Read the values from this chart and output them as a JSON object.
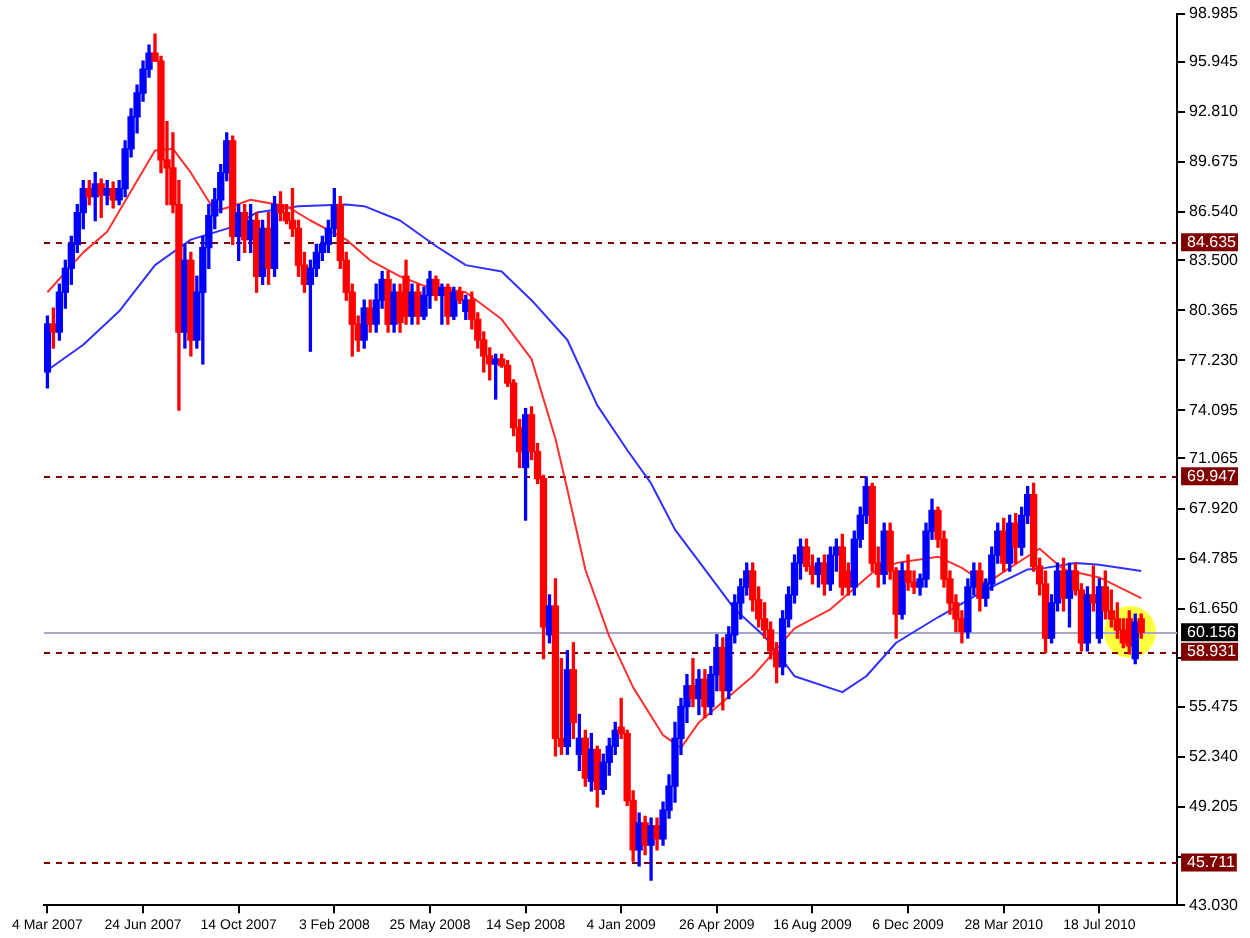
{
  "chart_data": {
    "type": "candlestick",
    "x": [
      "2007-03-04",
      "2007-03-11",
      "2007-03-18",
      "2007-03-25",
      "2007-04-01",
      "2007-04-08",
      "2007-04-15",
      "2007-04-22",
      "2007-04-29",
      "2007-05-06",
      "2007-05-13",
      "2007-05-20",
      "2007-05-27",
      "2007-06-03",
      "2007-06-10",
      "2007-06-17",
      "2007-06-24",
      "2007-07-01",
      "2007-07-08",
      "2007-07-15",
      "2007-07-22",
      "2007-07-29",
      "2007-08-05",
      "2007-08-12",
      "2007-08-19",
      "2007-08-26",
      "2007-09-02",
      "2007-09-09",
      "2007-09-16",
      "2007-09-23",
      "2007-09-30",
      "2007-10-07",
      "2007-10-14",
      "2007-10-21",
      "2007-10-28",
      "2007-11-04",
      "2007-11-11",
      "2007-11-18",
      "2007-11-25",
      "2007-12-02",
      "2007-12-09",
      "2007-12-16",
      "2007-12-23",
      "2007-12-30",
      "2008-01-06",
      "2008-01-13",
      "2008-01-20",
      "2008-01-27",
      "2008-02-03",
      "2008-02-10",
      "2008-02-17",
      "2008-02-24",
      "2008-03-02",
      "2008-03-09",
      "2008-03-16",
      "2008-03-23",
      "2008-03-30",
      "2008-04-06",
      "2008-04-13",
      "2008-04-20",
      "2008-04-27",
      "2008-05-04",
      "2008-05-11",
      "2008-05-18",
      "2008-05-25",
      "2008-06-01",
      "2008-06-08",
      "2008-06-15",
      "2008-06-22",
      "2008-06-29",
      "2008-07-06",
      "2008-07-13",
      "2008-07-20",
      "2008-07-27",
      "2008-08-03",
      "2008-08-10",
      "2008-08-17",
      "2008-08-24",
      "2008-08-31",
      "2008-09-07",
      "2008-09-14",
      "2008-09-21",
      "2008-09-28",
      "2008-10-05",
      "2008-10-12",
      "2008-10-19",
      "2008-10-26",
      "2008-11-02",
      "2008-11-09",
      "2008-11-16",
      "2008-11-23",
      "2008-11-30",
      "2008-12-07",
      "2008-12-14",
      "2008-12-21",
      "2008-12-28",
      "2009-01-04",
      "2009-01-11",
      "2009-01-18",
      "2009-01-25",
      "2009-02-01",
      "2009-02-08",
      "2009-02-15",
      "2009-02-22",
      "2009-03-01",
      "2009-03-08",
      "2009-03-15",
      "2009-03-22",
      "2009-03-29",
      "2009-04-05",
      "2009-04-12",
      "2009-04-19",
      "2009-04-26",
      "2009-05-03",
      "2009-05-10",
      "2009-05-17",
      "2009-05-24",
      "2009-05-31",
      "2009-06-07",
      "2009-06-14",
      "2009-06-21",
      "2009-06-28",
      "2009-07-05",
      "2009-07-12",
      "2009-07-19",
      "2009-07-26",
      "2009-08-02",
      "2009-08-09",
      "2009-08-16",
      "2009-08-23",
      "2009-08-30",
      "2009-09-06",
      "2009-09-13",
      "2009-09-20",
      "2009-09-27",
      "2009-10-04",
      "2009-10-11",
      "2009-10-18",
      "2009-10-25",
      "2009-11-01",
      "2009-11-08",
      "2009-11-15",
      "2009-11-22",
      "2009-11-29",
      "2009-12-06",
      "2009-12-13",
      "2009-12-20",
      "2009-12-27",
      "2010-01-03",
      "2010-01-10",
      "2010-01-17",
      "2010-01-24",
      "2010-01-31",
      "2010-02-07",
      "2010-02-14",
      "2010-02-21",
      "2010-02-28",
      "2010-03-07",
      "2010-03-14",
      "2010-03-21",
      "2010-03-28",
      "2010-04-04",
      "2010-04-11",
      "2010-04-18",
      "2010-04-25",
      "2010-05-02",
      "2010-05-09",
      "2010-05-16",
      "2010-05-23",
      "2010-05-30",
      "2010-06-06",
      "2010-06-13",
      "2010-06-20",
      "2010-06-27",
      "2010-07-04",
      "2010-07-11",
      "2010-07-18",
      "2010-07-25",
      "2010-08-01",
      "2010-08-08",
      "2010-08-15",
      "2010-08-22",
      "2010-08-29",
      "2010-09-05"
    ],
    "ohlc": [
      [
        76.5,
        80,
        75.5,
        79.5
      ],
      [
        79.5,
        80.5,
        78,
        79
      ],
      [
        79,
        82,
        78.5,
        81.5
      ],
      [
        81.5,
        83.5,
        80.5,
        83
      ],
      [
        83,
        85,
        82,
        84.5
      ],
      [
        84.5,
        87,
        84,
        86.5
      ],
      [
        86.5,
        88.5,
        85.5,
        88
      ],
      [
        88,
        88.5,
        87,
        87.5
      ],
      [
        87.5,
        89,
        86,
        88.3
      ],
      [
        88.3,
        88.6,
        86.2,
        87.6
      ],
      [
        87.6,
        88.5,
        87,
        88
      ],
      [
        88,
        88.4,
        86.8,
        87.3
      ],
      [
        87.3,
        88.5,
        87,
        88
      ],
      [
        88,
        91,
        87.5,
        90.5
      ],
      [
        90.5,
        93,
        90,
        92.5
      ],
      [
        92.5,
        94.5,
        91.5,
        94
      ],
      [
        94,
        96,
        93.5,
        95.5
      ],
      [
        95.5,
        97,
        95,
        96.5
      ],
      [
        96.5,
        97.7,
        96,
        96
      ],
      [
        96,
        96.3,
        89,
        89.8
      ],
      [
        89.8,
        92.2,
        87,
        89.3
      ],
      [
        89.3,
        91.5,
        86.5,
        87
      ],
      [
        87,
        88.5,
        74.1,
        79
      ],
      [
        79,
        84.5,
        78,
        83.5
      ],
      [
        83.5,
        84,
        77.5,
        78.5
      ],
      [
        78.5,
        82.5,
        78,
        81.5
      ],
      [
        81.5,
        85,
        77,
        84.3
      ],
      [
        84.3,
        87,
        83,
        86.3
      ],
      [
        86.3,
        88,
        85.5,
        87.3
      ],
      [
        87.3,
        89.5,
        86.5,
        89
      ],
      [
        89,
        91.5,
        88.5,
        91
      ],
      [
        91,
        91.3,
        84.5,
        85
      ],
      [
        85,
        87,
        83.5,
        86.5
      ],
      [
        86.5,
        87,
        84,
        84.8
      ],
      [
        84.8,
        87,
        84,
        86
      ],
      [
        86,
        86.5,
        81.5,
        82.5
      ],
      [
        82.5,
        86,
        82,
        85.5
      ],
      [
        85.5,
        86.5,
        82,
        83
      ],
      [
        83,
        87.5,
        82.5,
        87
      ],
      [
        87,
        87.8,
        86,
        86.5
      ],
      [
        86.5,
        87,
        85.8,
        86
      ],
      [
        86,
        88,
        85,
        85.5
      ],
      [
        85.5,
        86,
        82.5,
        83.2
      ],
      [
        83.2,
        84,
        81.5,
        82
      ],
      [
        82,
        83.5,
        77.8,
        83
      ],
      [
        83,
        84.5,
        82.5,
        84
      ],
      [
        84,
        85,
        83.5,
        84.5
      ],
      [
        84.5,
        86,
        84,
        85.5
      ],
      [
        85.5,
        88,
        85,
        87
      ],
      [
        87,
        87.5,
        83,
        83.5
      ],
      [
        83.5,
        84,
        81,
        81.5
      ],
      [
        81.5,
        82,
        77.5,
        79.5
      ],
      [
        79.5,
        80,
        77.8,
        78.5
      ],
      [
        78.5,
        81,
        78,
        80.5
      ],
      [
        80.5,
        81,
        79,
        79.5
      ],
      [
        79.5,
        82,
        79,
        81
      ],
      [
        81,
        82.8,
        80.5,
        82.3
      ],
      [
        82.3,
        82.8,
        79,
        79.5
      ],
      [
        79.5,
        82,
        79,
        81.5
      ],
      [
        81.5,
        82,
        79,
        79.6
      ],
      [
        82.5,
        83.5,
        79.5,
        80
      ],
      [
        80,
        82,
        79.5,
        81.5
      ],
      [
        81.5,
        82,
        79.5,
        80
      ],
      [
        80,
        81.8,
        79.8,
        81.3
      ],
      [
        81.3,
        82.8,
        80.5,
        82.3
      ],
      [
        82.3,
        82.5,
        81,
        81.3
      ],
      [
        81.3,
        82,
        79.5,
        81.8
      ],
      [
        81.8,
        82,
        79.5,
        80
      ],
      [
        80,
        81.8,
        79.8,
        81.5
      ],
      [
        81.5,
        81.8,
        80.8,
        81
      ],
      [
        80.3,
        81.3,
        79.8,
        81
      ],
      [
        81,
        81.5,
        79.2,
        79.8
      ],
      [
        79.8,
        80.2,
        78,
        78.5
      ],
      [
        78.5,
        79,
        76.5,
        77.5
      ],
      [
        77.5,
        78,
        76,
        77
      ],
      [
        77,
        77.6,
        74.8,
        77.3
      ],
      [
        77.3,
        77.6,
        76.8,
        76.9
      ],
      [
        76.9,
        77.2,
        75.6,
        75.8
      ],
      [
        75.8,
        76,
        72.5,
        73
      ],
      [
        73,
        73.5,
        70.5,
        71.5
      ],
      [
        70.5,
        74.2,
        67.2,
        73.8
      ],
      [
        73.8,
        74.3,
        71,
        71.5
      ],
      [
        71.5,
        72,
        69.5,
        69.8
      ],
      [
        69.8,
        70,
        58.5,
        60.5
      ],
      [
        60,
        62.5,
        59.5,
        61.8
      ],
      [
        61.8,
        63.5,
        52.4,
        53.5
      ],
      [
        53.5,
        58.5,
        52.5,
        53
      ],
      [
        53,
        59,
        52.5,
        57.8
      ],
      [
        57.8,
        59.5,
        53.5,
        54.5
      ],
      [
        52.5,
        55,
        51.5,
        53.5
      ],
      [
        53.5,
        54,
        50.5,
        51
      ],
      [
        50.8,
        53.8,
        50.2,
        52.8
      ],
      [
        52.8,
        53,
        49.2,
        50.3
      ],
      [
        50.3,
        52.5,
        50,
        52
      ],
      [
        52,
        53.5,
        51.2,
        53
      ],
      [
        53,
        54.5,
        52.5,
        54
      ],
      [
        54.2,
        56,
        53.5,
        53.8
      ],
      [
        53.8,
        54,
        49.3,
        49.6
      ],
      [
        49.6,
        50.2,
        45.8,
        46.5
      ],
      [
        46.5,
        48.8,
        45.5,
        48.2
      ],
      [
        48.2,
        48.6,
        46.2,
        46.8
      ],
      [
        46.8,
        48.5,
        44.6,
        48
      ],
      [
        48,
        48.5,
        46.5,
        47.2
      ],
      [
        47.2,
        49.5,
        46.8,
        49
      ],
      [
        49,
        51.2,
        48.5,
        50.5
      ],
      [
        50.5,
        54.5,
        49.5,
        53.5
      ],
      [
        53.5,
        56,
        52.5,
        55.5
      ],
      [
        55.5,
        57.5,
        54.5,
        56.8
      ],
      [
        56.8,
        58.5,
        55.5,
        56
      ],
      [
        56,
        57.8,
        55,
        57.2
      ],
      [
        57.2,
        57.8,
        54.8,
        55.5
      ],
      [
        55.5,
        58,
        55,
        57.5
      ],
      [
        57.5,
        60,
        56.5,
        59.2
      ],
      [
        59.2,
        59.8,
        55.3,
        56.5
      ],
      [
        56.5,
        60.5,
        56,
        60
      ],
      [
        60,
        62.5,
        59.5,
        62
      ],
      [
        62,
        63.5,
        61,
        63
      ],
      [
        63,
        64.5,
        62.5,
        64
      ],
      [
        64,
        64.5,
        61.5,
        62.2
      ],
      [
        62.2,
        63,
        60.5,
        61
      ],
      [
        61,
        62,
        59.8,
        60.3
      ],
      [
        60.3,
        60.8,
        58.5,
        59
      ],
      [
        59,
        59.5,
        57,
        58
      ],
      [
        58,
        61.5,
        57.5,
        61
      ],
      [
        61,
        63,
        60.5,
        62.5
      ],
      [
        62.5,
        65,
        62,
        64.5
      ],
      [
        64.5,
        66,
        63.5,
        65.5
      ],
      [
        65.5,
        66,
        64,
        64.3
      ],
      [
        64.3,
        65,
        63.2,
        63.8
      ],
      [
        63.8,
        64.8,
        63,
        64.5
      ],
      [
        64.5,
        65,
        62.5,
        63.2
      ],
      [
        63.2,
        65.5,
        62.8,
        65
      ],
      [
        65,
        66,
        64,
        65.5
      ],
      [
        65.5,
        66.3,
        62.5,
        63
      ],
      [
        64,
        64.5,
        62.5,
        63
      ],
      [
        63,
        66.5,
        62.5,
        66
      ],
      [
        66,
        68,
        65.5,
        67.5
      ],
      [
        67.5,
        69.9,
        67,
        69.3
      ],
      [
        69.3,
        69.5,
        64,
        64.5
      ],
      [
        64.5,
        65.5,
        63,
        63.8
      ],
      [
        63.8,
        67,
        63.2,
        66.5
      ],
      [
        66.5,
        67,
        63.5,
        64
      ],
      [
        64,
        64.2,
        59.8,
        61.3
      ],
      [
        61.3,
        64.5,
        61,
        64
      ],
      [
        64,
        65,
        62.8,
        63.3
      ],
      [
        63.3,
        64,
        62.6,
        63
      ],
      [
        63,
        63.8,
        62.5,
        63.5
      ],
      [
        63.5,
        67,
        63,
        66.5
      ],
      [
        66.5,
        68.5,
        66,
        67.8
      ],
      [
        67.8,
        68,
        65.5,
        66
      ],
      [
        66,
        66.5,
        63,
        63.5
      ],
      [
        63.5,
        64,
        61.3,
        62
      ],
      [
        62,
        62.5,
        60.2,
        61
      ],
      [
        61,
        61.5,
        59.5,
        60.2
      ],
      [
        60.2,
        63.5,
        59.8,
        63
      ],
      [
        63,
        64.5,
        62.5,
        64
      ],
      [
        64,
        64.5,
        61.5,
        62.3
      ],
      [
        62.3,
        63.5,
        61.8,
        63.2
      ],
      [
        63.2,
        65.5,
        62.8,
        65
      ],
      [
        65,
        67,
        64.5,
        66.5
      ],
      [
        66.5,
        67.3,
        64,
        64.5
      ],
      [
        64.5,
        67.5,
        64,
        67
      ],
      [
        67,
        67.6,
        64.5,
        65.5
      ],
      [
        65.5,
        68,
        65,
        67.5
      ],
      [
        67.5,
        69.3,
        67,
        68.8
      ],
      [
        68.8,
        69.5,
        64,
        64.3
      ],
      [
        64.3,
        64.8,
        62.5,
        63.2
      ],
      [
        63.2,
        64,
        58.9,
        59.8
      ],
      [
        59.8,
        62.5,
        59.5,
        62
      ],
      [
        62,
        64.5,
        61.5,
        64
      ],
      [
        64,
        64.8,
        61.5,
        62.3
      ],
      [
        62.3,
        64.5,
        60.5,
        64
      ],
      [
        64,
        64.5,
        62.5,
        62.8
      ],
      [
        62.8,
        63.2,
        59,
        59.5
      ],
      [
        59.5,
        63,
        59,
        62.5
      ],
      [
        62.5,
        64.3,
        61.5,
        62
      ],
      [
        59.8,
        63.5,
        59.5,
        63
      ],
      [
        63,
        64,
        61,
        61.5
      ],
      [
        61.5,
        62.8,
        60.5,
        61
      ],
      [
        61,
        62,
        59.8,
        60.3
      ],
      [
        60.3,
        61,
        59.2,
        59.5
      ],
      [
        61,
        61.5,
        58.8,
        59.3
      ],
      [
        58.5,
        61.3,
        58.2,
        60.8
      ],
      [
        61,
        61.3,
        59.8,
        60.156
      ]
    ],
    "colors": [
      "#0000ff",
      "#ff0000",
      "#0000ff",
      "#0000ff",
      "#0000ff",
      "#0000ff",
      "#0000ff",
      "#ff0000",
      "#0000ff",
      "#ff0000",
      "#0000ff",
      "#ff0000",
      "#0000ff",
      "#0000ff",
      "#0000ff",
      "#0000ff",
      "#0000ff",
      "#0000ff",
      "#ff0000",
      "#ff0000",
      "#ff0000",
      "#ff0000",
      "#ff0000",
      "#0000ff",
      "#ff0000",
      "#0000ff",
      "#0000ff",
      "#0000ff",
      "#0000ff",
      "#0000ff",
      "#0000ff",
      "#ff0000",
      "#0000ff",
      "#ff0000",
      "#0000ff",
      "#ff0000",
      "#0000ff",
      "#ff0000",
      "#0000ff",
      "#ff0000",
      "#ff0000",
      "#ff0000",
      "#ff0000",
      "#ff0000",
      "#0000ff",
      "#0000ff",
      "#0000ff",
      "#0000ff",
      "#0000ff",
      "#ff0000",
      "#ff0000",
      "#ff0000",
      "#ff0000",
      "#0000ff",
      "#ff0000",
      "#0000ff",
      "#0000ff",
      "#ff0000",
      "#0000ff",
      "#ff0000",
      "#ff0000",
      "#0000ff",
      "#ff0000",
      "#0000ff",
      "#0000ff",
      "#ff0000",
      "#0000ff",
      "#ff0000",
      "#0000ff",
      "#ff0000",
      "#0000ff",
      "#ff0000",
      "#ff0000",
      "#ff0000",
      "#ff0000",
      "#0000ff",
      "#ff0000",
      "#ff0000",
      "#ff0000",
      "#ff0000",
      "#0000ff",
      "#ff0000",
      "#ff0000",
      "#ff0000",
      "#0000ff",
      "#ff0000",
      "#ff0000",
      "#0000ff",
      "#ff0000",
      "#0000ff",
      "#ff0000",
      "#0000ff",
      "#ff0000",
      "#0000ff",
      "#0000ff",
      "#0000ff",
      "#ff0000",
      "#ff0000",
      "#ff0000",
      "#0000ff",
      "#ff0000",
      "#0000ff",
      "#ff0000",
      "#0000ff",
      "#0000ff",
      "#0000ff",
      "#0000ff",
      "#0000ff",
      "#ff0000",
      "#0000ff",
      "#ff0000",
      "#0000ff",
      "#0000ff",
      "#ff0000",
      "#0000ff",
      "#0000ff",
      "#0000ff",
      "#0000ff",
      "#ff0000",
      "#ff0000",
      "#ff0000",
      "#ff0000",
      "#ff0000",
      "#0000ff",
      "#0000ff",
      "#0000ff",
      "#0000ff",
      "#ff0000",
      "#ff0000",
      "#0000ff",
      "#ff0000",
      "#0000ff",
      "#0000ff",
      "#ff0000",
      "#ff0000",
      "#0000ff",
      "#0000ff",
      "#0000ff",
      "#ff0000",
      "#ff0000",
      "#0000ff",
      "#ff0000",
      "#ff0000",
      "#0000ff",
      "#ff0000",
      "#ff0000",
      "#0000ff",
      "#0000ff",
      "#0000ff",
      "#ff0000",
      "#ff0000",
      "#ff0000",
      "#ff0000",
      "#ff0000",
      "#0000ff",
      "#0000ff",
      "#ff0000",
      "#0000ff",
      "#0000ff",
      "#0000ff",
      "#ff0000",
      "#0000ff",
      "#ff0000",
      "#0000ff",
      "#0000ff",
      "#ff0000",
      "#ff0000",
      "#ff0000",
      "#0000ff",
      "#0000ff",
      "#ff0000",
      "#0000ff",
      "#ff0000",
      "#ff0000",
      "#0000ff",
      "#ff0000",
      "#0000ff",
      "#ff0000",
      "#ff0000",
      "#ff0000",
      "#ff0000",
      "#ff0000",
      "#0000ff",
      "#ff0000"
    ],
    "series": [
      {
        "type": "line",
        "color": "#ff3030",
        "x": [
          "2007-03-04",
          "2007-04-15",
          "2007-05-13",
          "2007-06-17",
          "2007-07-08",
          "2007-07-29",
          "2007-08-19",
          "2007-09-16",
          "2007-10-07",
          "2007-10-28",
          "2007-12-09",
          "2008-01-06",
          "2008-02-17",
          "2008-03-16",
          "2008-04-20",
          "2008-05-18",
          "2008-07-06",
          "2008-08-17",
          "2008-09-21",
          "2008-10-19",
          "2008-11-02",
          "2008-11-23",
          "2008-12-21",
          "2009-01-18",
          "2009-02-22",
          "2009-03-15",
          "2009-04-05",
          "2009-05-03",
          "2009-06-07",
          "2009-07-05",
          "2009-07-26",
          "2009-09-06",
          "2009-10-25",
          "2009-11-22",
          "2010-01-10",
          "2010-02-07",
          "2010-03-07",
          "2010-04-04",
          "2010-05-09",
          "2010-06-06",
          "2010-07-18",
          "2010-09-05"
        ],
        "values": [
          81.5,
          84.0,
          85.3,
          88.5,
          90.4,
          90.5,
          89.0,
          86.6,
          86.9,
          87.3,
          86.9,
          86.0,
          84.8,
          83.5,
          82.5,
          81.9,
          81.5,
          79.8,
          77.3,
          72.3,
          69.1,
          64.1,
          59.9,
          56.7,
          53.7,
          52.9,
          54.5,
          55.8,
          57.4,
          59.1,
          60.4,
          61.6,
          63.9,
          64.5,
          64.9,
          64.2,
          63.2,
          64.2,
          65.4,
          64.1,
          63.6,
          62.3
        ]
      },
      {
        "type": "line",
        "color": "#3030ff",
        "x": [
          "2007-03-04",
          "2007-04-15",
          "2007-05-27",
          "2007-07-08",
          "2007-08-19",
          "2007-10-07",
          "2007-11-04",
          "2007-12-23",
          "2008-02-17",
          "2008-03-09",
          "2008-04-20",
          "2008-06-01",
          "2008-07-06",
          "2008-08-17",
          "2008-09-21",
          "2008-11-02",
          "2008-12-07",
          "2009-01-11",
          "2009-02-08",
          "2009-03-08",
          "2009-04-12",
          "2009-05-17",
          "2009-06-21",
          "2009-07-26",
          "2009-09-20",
          "2009-10-18",
          "2009-11-22",
          "2010-01-10",
          "2010-02-21",
          "2010-03-21",
          "2010-04-25",
          "2010-05-16",
          "2010-06-20",
          "2010-07-18",
          "2010-09-05"
        ],
        "values": [
          76.6,
          78.2,
          80.3,
          83.2,
          84.8,
          85.6,
          86.5,
          86.9,
          87.0,
          86.9,
          86.0,
          84.4,
          83.2,
          82.8,
          81.0,
          78.5,
          74.4,
          71.6,
          69.5,
          66.6,
          64.1,
          61.6,
          59.9,
          57.4,
          56.4,
          57.4,
          59.5,
          61.1,
          62.4,
          63.2,
          64.1,
          64.2,
          64.5,
          64.4,
          64.0
        ]
      }
    ],
    "ylim": [
      43.03,
      98.985
    ],
    "yticks": [
      {
        "value": 98.985,
        "label": "98.985"
      },
      {
        "value": 95.945,
        "label": "95.945"
      },
      {
        "value": 92.81,
        "label": "92.810"
      },
      {
        "value": 89.675,
        "label": "89.675"
      },
      {
        "value": 86.54,
        "label": "86.540"
      },
      {
        "value": 83.5,
        "label": "83.500"
      },
      {
        "value": 80.365,
        "label": "80.365"
      },
      {
        "value": 77.23,
        "label": "77.230"
      },
      {
        "value": 74.095,
        "label": "74.095"
      },
      {
        "value": 71.065,
        "label": "71.065"
      },
      {
        "value": 67.92,
        "label": "67.920"
      },
      {
        "value": 64.785,
        "label": "64.785"
      },
      {
        "value": 61.65,
        "label": "61.650"
      },
      {
        "value": 58.515,
        "label": null
      },
      {
        "value": 55.475,
        "label": "55.475"
      },
      {
        "value": 52.34,
        "label": "52.340"
      },
      {
        "value": 49.205,
        "label": "49.205"
      },
      {
        "value": 46.07,
        "label": null
      },
      {
        "value": 43.03,
        "label": "43.030"
      }
    ],
    "xlim": [
      "2007-02-28",
      "2010-10-17"
    ],
    "xticks": [
      {
        "value": "2007-03-04",
        "label": "4 Mar 2007"
      },
      {
        "value": "2007-06-24",
        "label": "24 Jun 2007"
      },
      {
        "value": "2007-10-14",
        "label": "14 Oct 2007"
      },
      {
        "value": "2008-02-03",
        "label": "3 Feb 2008"
      },
      {
        "value": "2008-05-25",
        "label": "25 May 2008"
      },
      {
        "value": "2008-09-14",
        "label": "14 Sep 2008"
      },
      {
        "value": "2009-01-04",
        "label": "4 Jan 2009"
      },
      {
        "value": "2009-04-26",
        "label": "26 Apr 2009"
      },
      {
        "value": "2009-08-16",
        "label": "16 Aug 2009"
      },
      {
        "value": "2009-12-06",
        "label": "6 Dec 2009"
      },
      {
        "value": "2010-03-28",
        "label": "28 Mar 2010"
      },
      {
        "value": "2010-07-18",
        "label": "18 Jul 2010"
      }
    ],
    "ref_lines": [
      {
        "axis": "y",
        "value": 84.635,
        "label": "84.635",
        "color": "#800000",
        "line_style": "dashed"
      },
      {
        "axis": "y",
        "value": 69.947,
        "label": "69.947",
        "color": "#800000",
        "line_style": "dashed"
      },
      {
        "axis": "y",
        "value": 58.931,
        "label": "58.931",
        "color": "#800000",
        "line_style": "dashed"
      },
      {
        "axis": "y",
        "value": 45.711,
        "label": "45.711",
        "color": "#800000",
        "line_style": "dashed"
      },
      {
        "axis": "y",
        "value": 60.156,
        "label": "60.156",
        "color": "#a8a8c8",
        "line_style": "solid"
      }
    ],
    "grid": false,
    "legend": false
  }
}
